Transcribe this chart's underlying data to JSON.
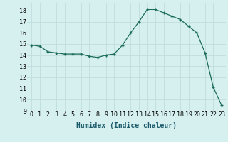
{
  "x": [
    0,
    1,
    2,
    3,
    4,
    5,
    6,
    7,
    8,
    9,
    10,
    11,
    12,
    13,
    14,
    15,
    16,
    17,
    18,
    19,
    20,
    21,
    22,
    23
  ],
  "y": [
    14.9,
    14.8,
    14.3,
    14.2,
    14.1,
    14.1,
    14.1,
    13.9,
    13.8,
    14.0,
    14.1,
    14.9,
    16.0,
    17.0,
    18.1,
    18.1,
    17.8,
    17.5,
    17.2,
    16.6,
    16.0,
    14.2,
    11.1,
    9.5
  ],
  "xlabel": "Humidex (Indice chaleur)",
  "xlim": [
    -0.5,
    23.5
  ],
  "ylim": [
    9,
    18.7
  ],
  "yticks": [
    9,
    10,
    11,
    12,
    13,
    14,
    15,
    16,
    17,
    18
  ],
  "xticks": [
    0,
    1,
    2,
    3,
    4,
    5,
    6,
    7,
    8,
    9,
    10,
    11,
    12,
    13,
    14,
    15,
    16,
    17,
    18,
    19,
    20,
    21,
    22,
    23
  ],
  "line_color": "#1a6b5a",
  "marker": "+",
  "marker_size": 3.5,
  "bg_color": "#d6f0ef",
  "grid_color": "#c0dedd",
  "xlabel_fontsize": 7,
  "tick_fontsize": 6
}
